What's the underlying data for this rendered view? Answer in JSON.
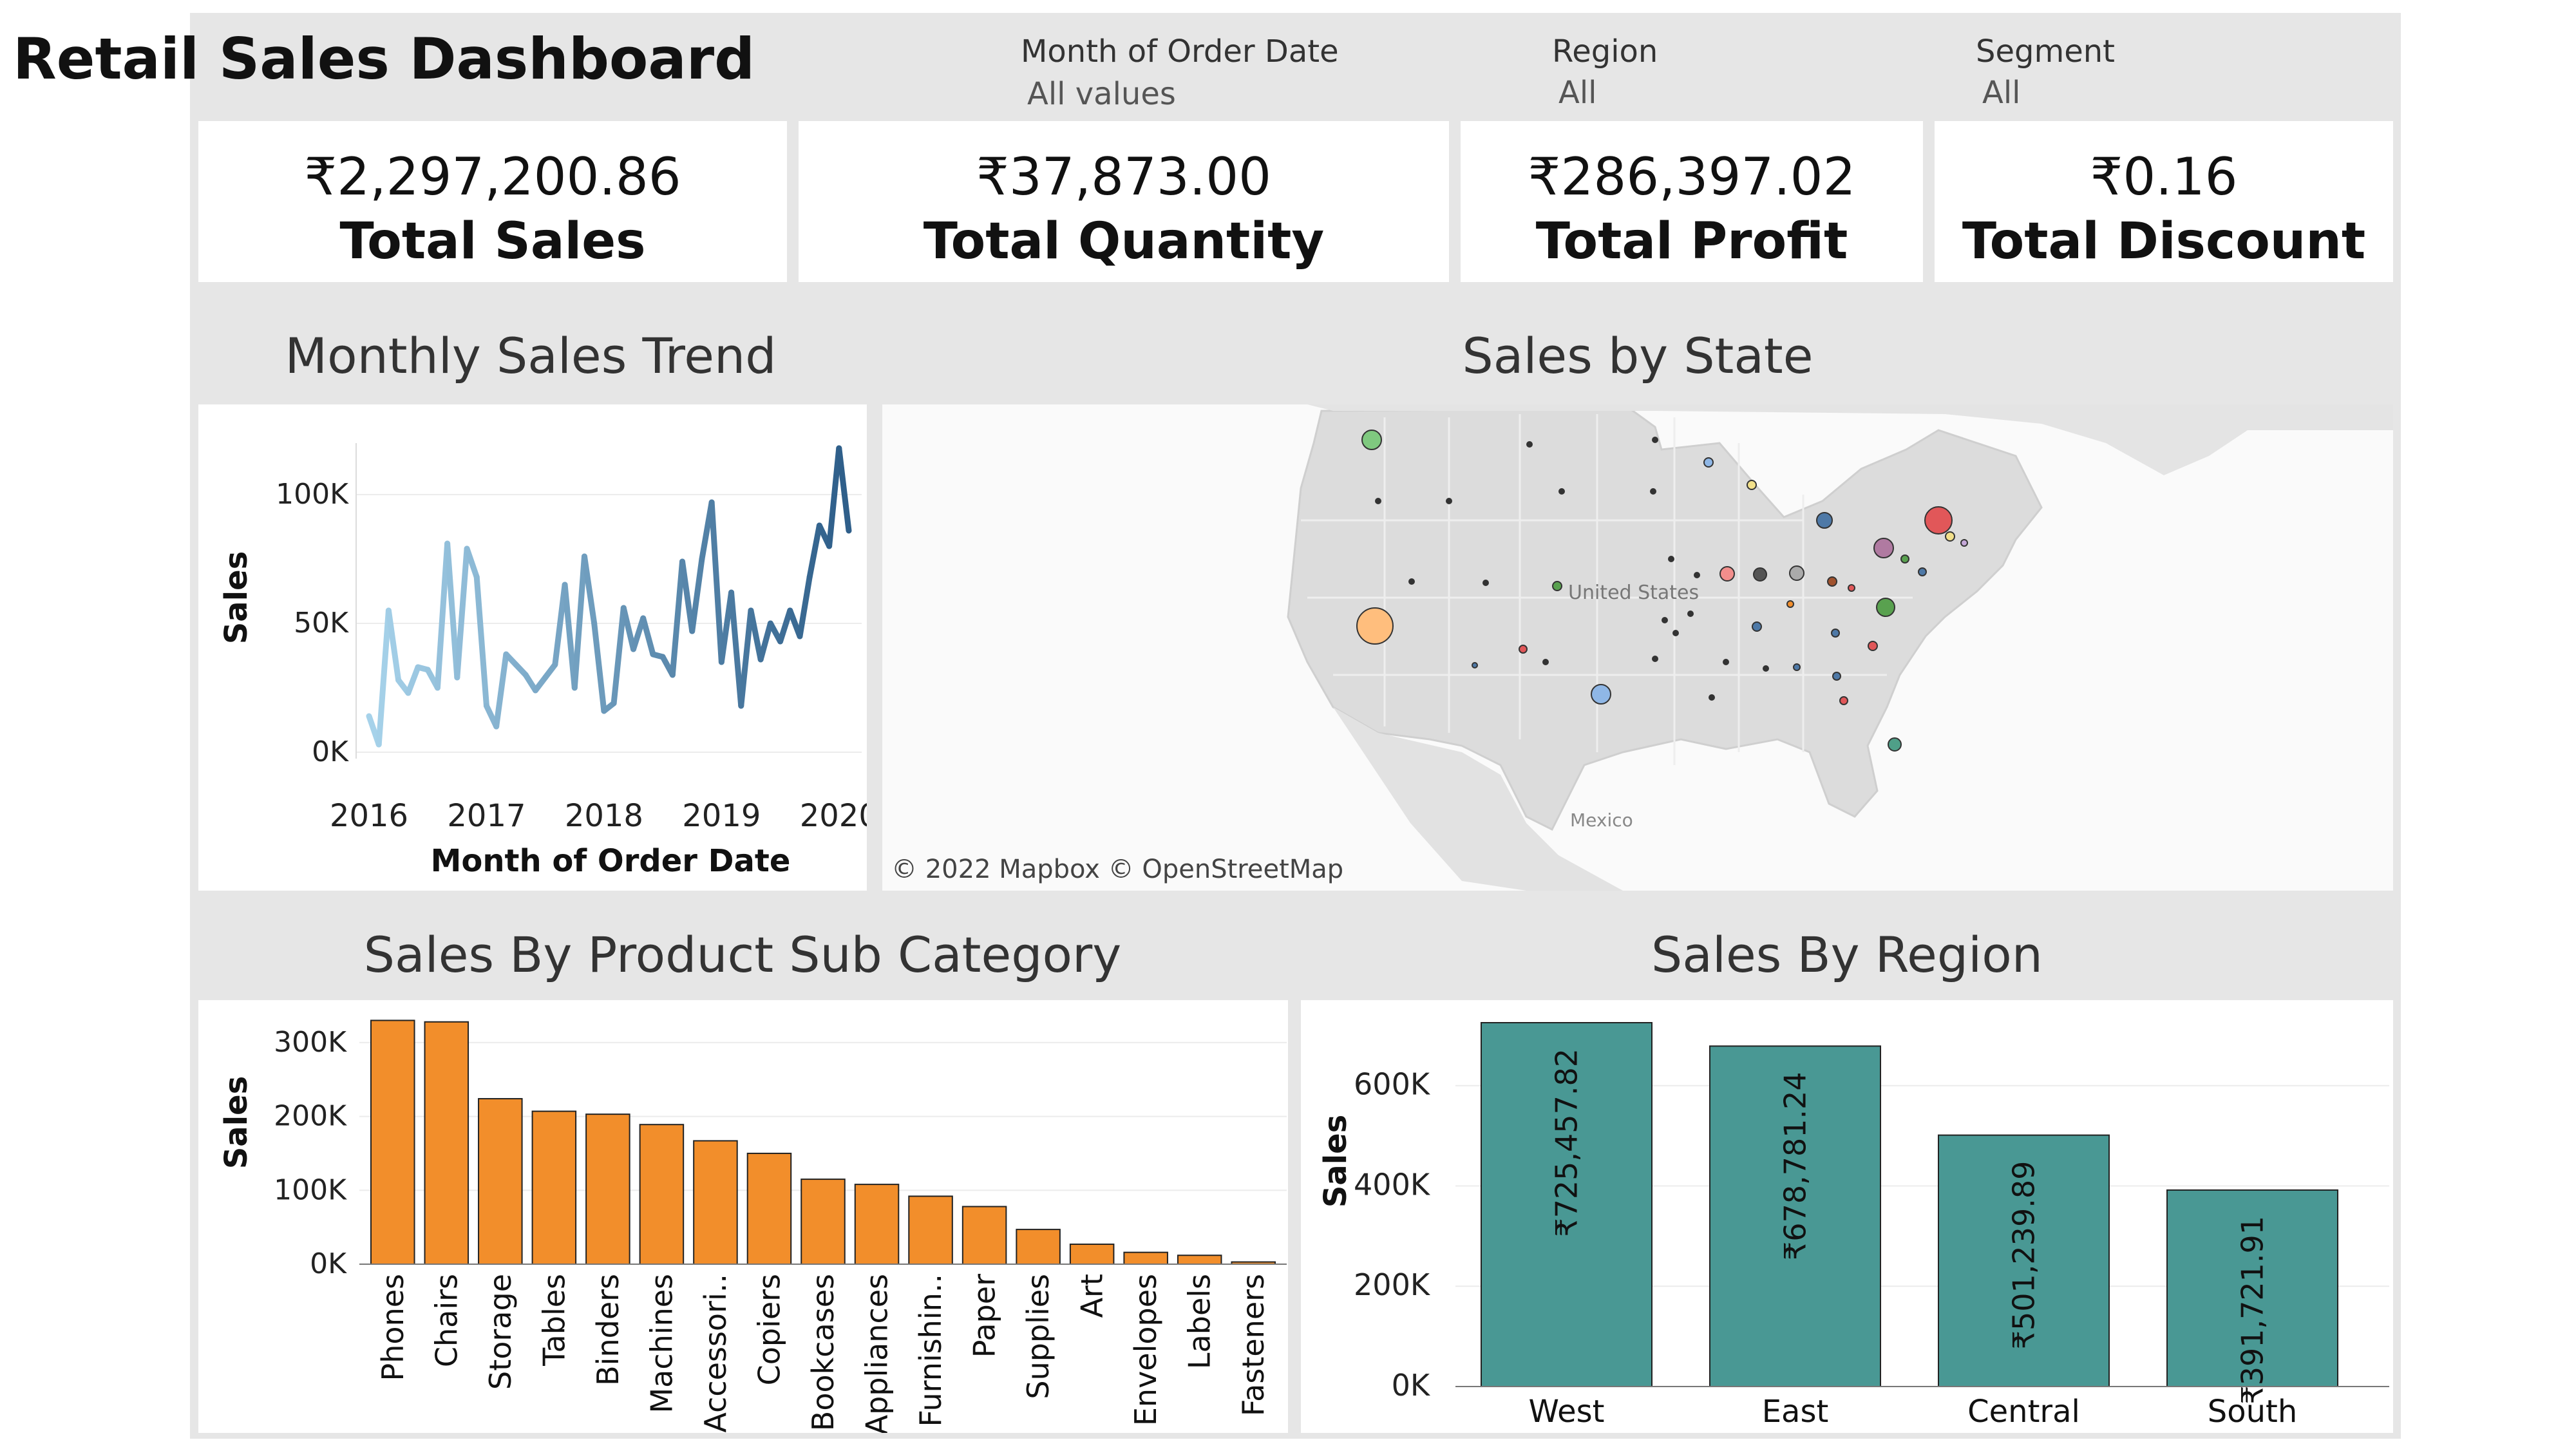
{
  "header": {
    "title": "Retail Sales Dashboard"
  },
  "filters": [
    {
      "label": "Month of Order Date",
      "value": "All values"
    },
    {
      "label": "Region",
      "value": "All"
    },
    {
      "label": "Segment",
      "value": "All"
    }
  ],
  "kpis": [
    {
      "value": "₹2,297,200.86",
      "label": "Total Sales"
    },
    {
      "value": "₹37,873.00",
      "label": "Total Quantity"
    },
    {
      "value": "₹286,397.02",
      "label": "Total Profit"
    },
    {
      "value": "₹0.16",
      "label": "Total Discount"
    }
  ],
  "sections": {
    "trend": "Monthly Sales Trend",
    "map": "Sales by State",
    "subcat": "Sales By Product Sub Category",
    "region": "Sales By Region"
  },
  "map": {
    "attribution": "© 2022 Mapbox © OpenStreetMap",
    "country_label": "United States",
    "mexico_label": "Mexico"
  },
  "colors": {
    "trend_start": "#a6d2ea",
    "trend_end": "#2f5f8a",
    "bar_orange": "#f28e2b",
    "bar_teal": "#499894"
  },
  "chart_data": [
    {
      "type": "line",
      "title": "Monthly Sales Trend",
      "xlabel": "Month of Order Date",
      "ylabel": "Sales",
      "ylim": [
        0,
        120000
      ],
      "yticks": [
        {
          "v": 0,
          "label": "0K"
        },
        {
          "v": 50000,
          "label": "50K"
        },
        {
          "v": 100000,
          "label": "100K"
        }
      ],
      "xticks": [
        {
          "v": 0,
          "label": "2016"
        },
        {
          "v": 12,
          "label": "2017"
        },
        {
          "v": 24,
          "label": "2018"
        },
        {
          "v": 36,
          "label": "2019"
        },
        {
          "v": 48,
          "label": "2020"
        }
      ],
      "values": [
        14000,
        3000,
        55000,
        28000,
        23000,
        33000,
        32000,
        25000,
        81000,
        29000,
        79000,
        68000,
        18000,
        10000,
        38000,
        34000,
        30000,
        24000,
        29000,
        34000,
        65000,
        25000,
        76000,
        50000,
        16000,
        19000,
        56000,
        40000,
        52000,
        38000,
        37000,
        30000,
        74000,
        47000,
        75000,
        97000,
        35000,
        62000,
        18000,
        55000,
        36000,
        50000,
        43000,
        55000,
        45000,
        68000,
        88000,
        80000,
        118000,
        86000
      ]
    },
    {
      "type": "bar",
      "title": "Sales By Product Sub Category",
      "ylabel": "Sales",
      "ylim": [
        0,
        340000
      ],
      "yticks": [
        {
          "v": 0,
          "label": "0K"
        },
        {
          "v": 100000,
          "label": "100K"
        },
        {
          "v": 200000,
          "label": "200K"
        },
        {
          "v": 300000,
          "label": "300K"
        }
      ],
      "categories": [
        "Phones",
        "Chairs",
        "Storage",
        "Tables",
        "Binders",
        "Machines",
        "Accessori..",
        "Copiers",
        "Bookcases",
        "Appliances",
        "Furnishin..",
        "Paper",
        "Supplies",
        "Art",
        "Envelopes",
        "Labels",
        "Fasteners"
      ],
      "values": [
        330000,
        328000,
        224000,
        207000,
        203000,
        189000,
        167000,
        150000,
        115000,
        108000,
        92000,
        78000,
        47000,
        27000,
        16000,
        12000,
        3000
      ]
    },
    {
      "type": "bar",
      "title": "Sales By Region",
      "ylabel": "Sales",
      "ylim": [
        0,
        725458
      ],
      "yticks": [
        {
          "v": 0,
          "label": "0K"
        },
        {
          "v": 200000,
          "label": "200K"
        },
        {
          "v": 400000,
          "label": "400K"
        },
        {
          "v": 600000,
          "label": "600K"
        }
      ],
      "categories": [
        "West",
        "East",
        "Central",
        "South"
      ],
      "values": [
        725457.82,
        678781.24,
        501239.89,
        391721.91
      ],
      "data_labels": [
        "₹725,457.82",
        "₹678,781.24",
        "₹501,239.89",
        "₹391,721.91"
      ]
    }
  ]
}
